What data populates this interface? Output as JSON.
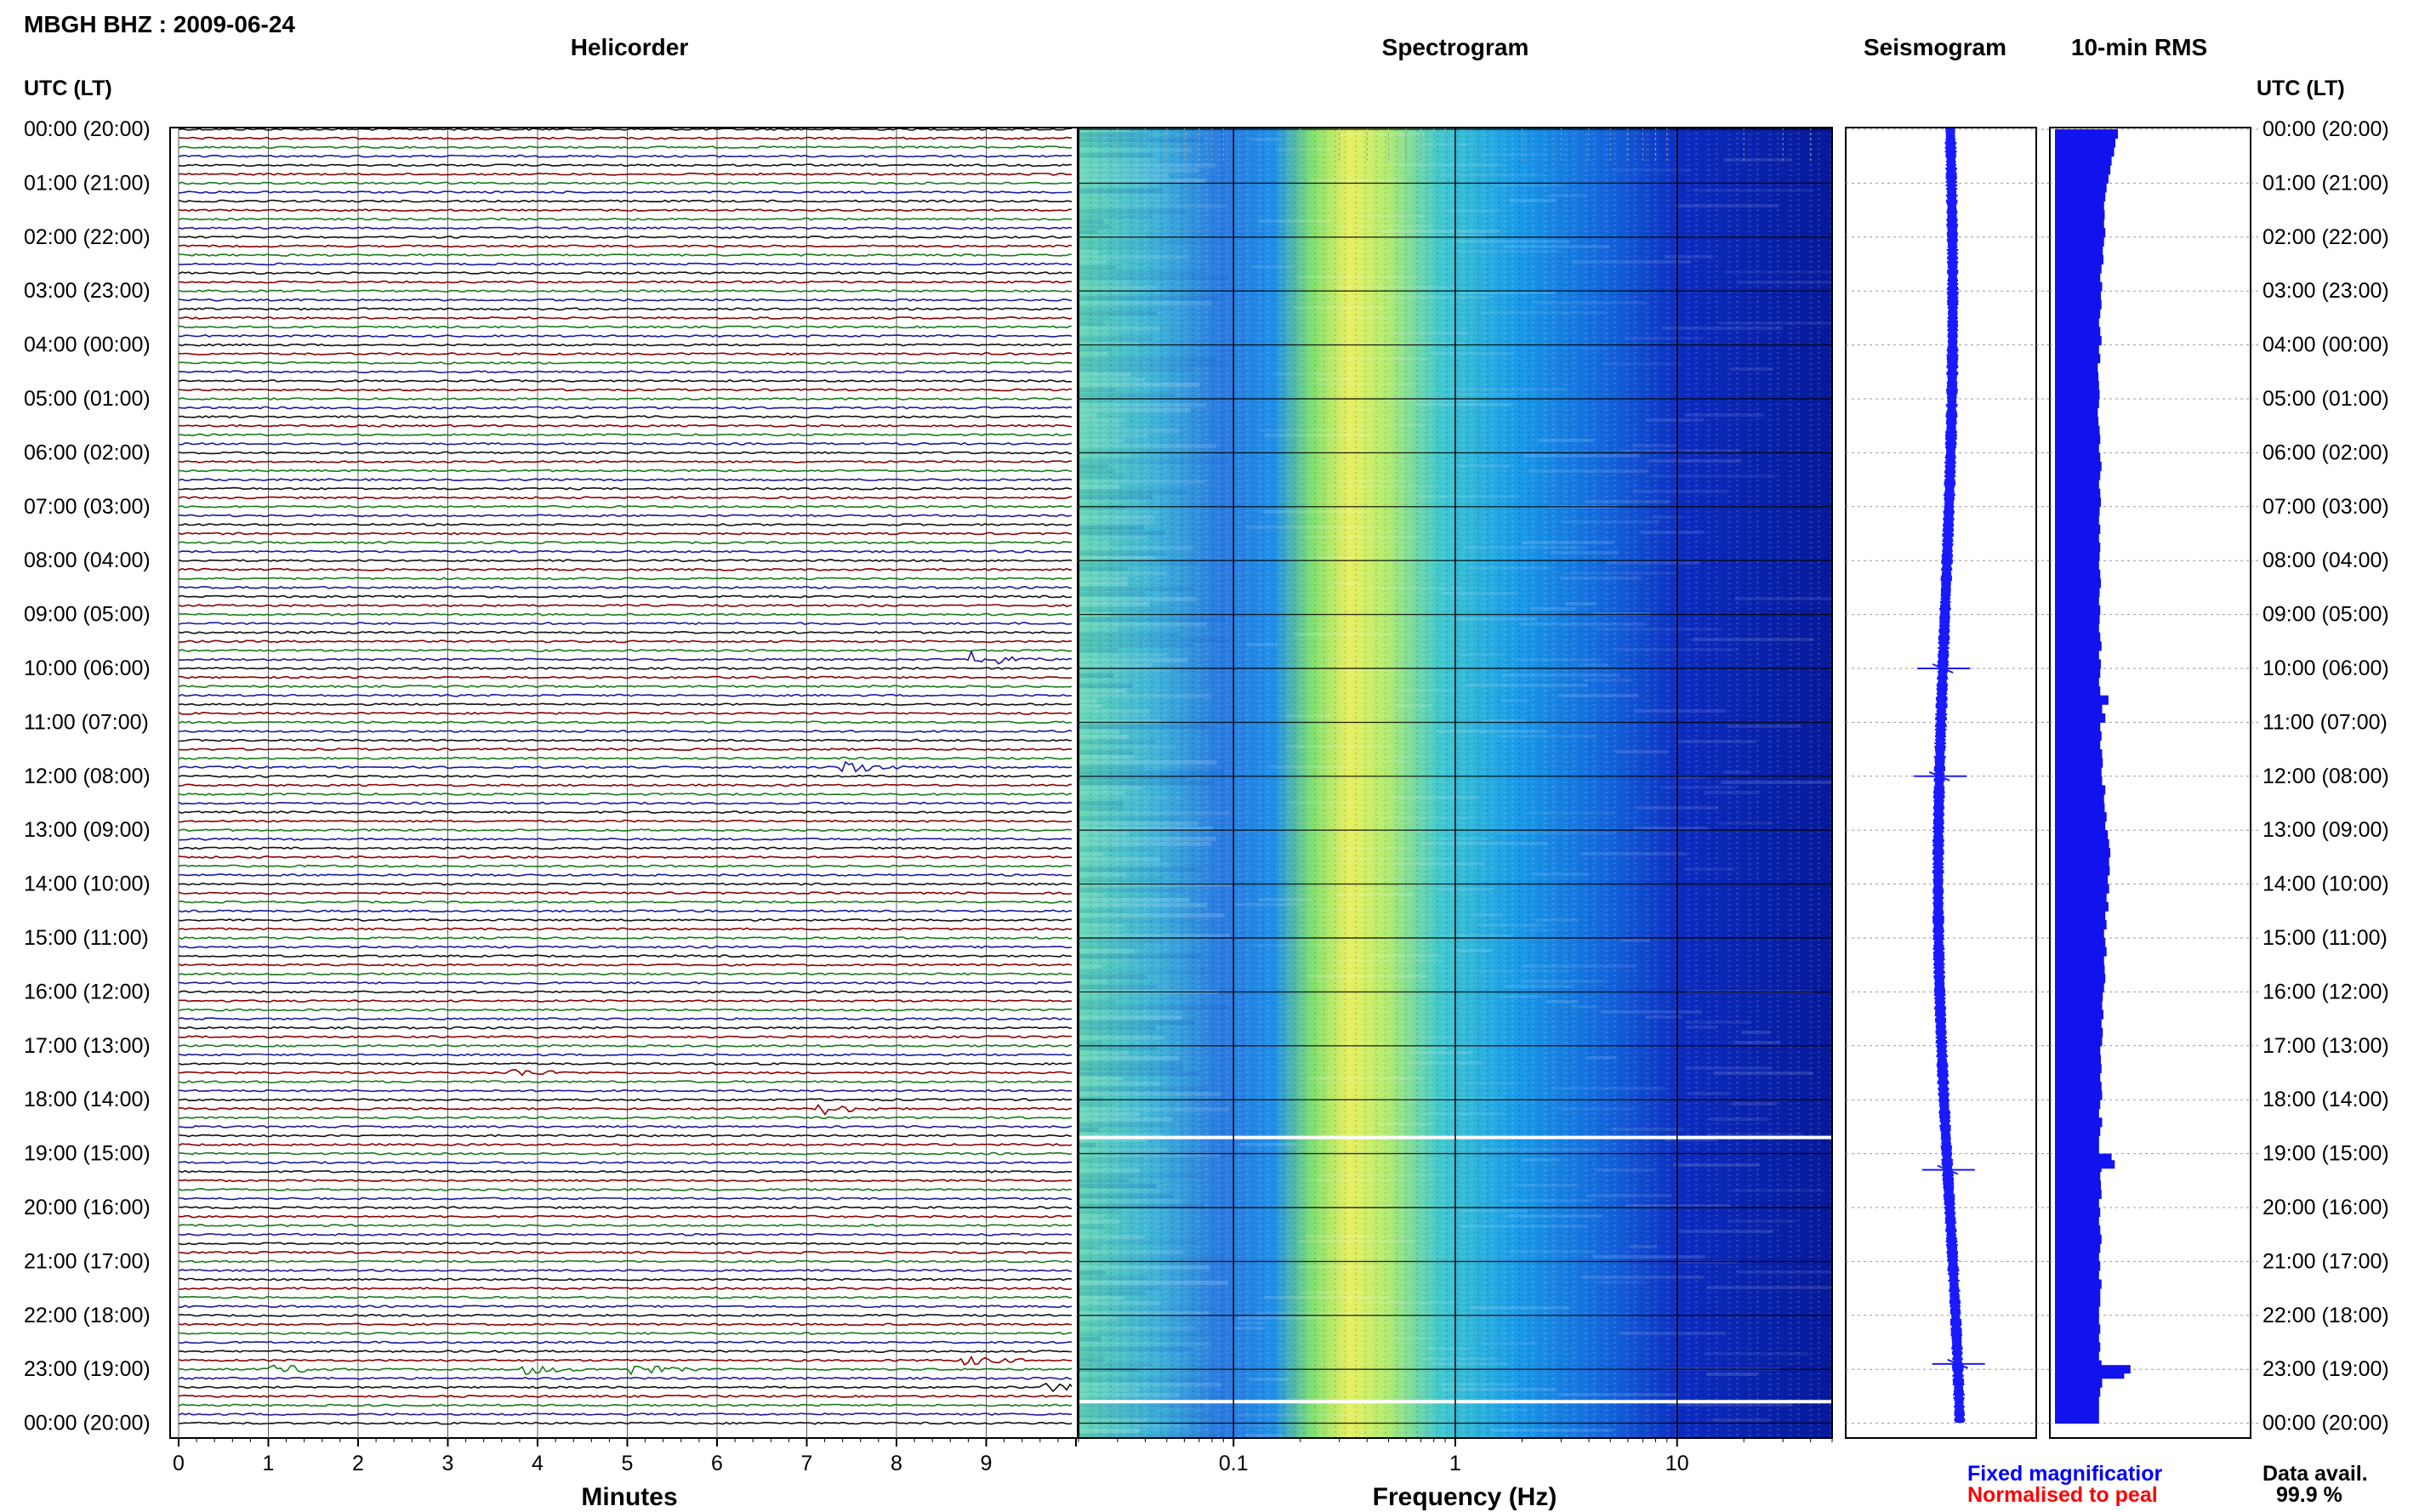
{
  "header": {
    "station_title": "MBGH BHZ : 2009-06-24",
    "panel_helicorder": "Helicorder",
    "panel_spectrogram": "Spectrogram",
    "panel_seismogram": "Seismogram",
    "panel_rms": "10-min RMS",
    "left_axis_title": "UTC (LT)",
    "right_axis_title": "UTC (LT)"
  },
  "footer": {
    "helicorder_xlabel": "Minutes",
    "spectrogram_xlabel": "Frequency (Hz)",
    "legend_fixed": "Fixed magnificatior",
    "legend_normalised": "Normalised to peal",
    "data_avail_label": "Data avail.",
    "data_avail_value": "99.9 %"
  },
  "colors": {
    "trace_black": "#111111",
    "trace_red": "#8b0000",
    "trace_green": "#1a7a1a",
    "trace_blue": "#1a1aa0",
    "seismogram_blue": "#1a1aff",
    "rms_blue": "#1212ee",
    "legend_blue": "#0000ff",
    "legend_red": "#ff0000"
  },
  "chart_data": [
    {
      "type": "line",
      "name": "helicorder",
      "xlabel": "Minutes",
      "x_ticks": [
        "0",
        "1",
        "2",
        "3",
        "4",
        "5",
        "6",
        "7",
        "8",
        "9"
      ],
      "xlim": [
        0,
        10
      ],
      "time_labels": [
        "00:00 (20:00)",
        "01:00 (21:00)",
        "02:00 (22:00)",
        "03:00 (23:00)",
        "04:00 (00:00)",
        "05:00 (01:00)",
        "06:00 (02:00)",
        "07:00 (03:00)",
        "08:00 (04:00)",
        "09:00 (05:00)",
        "10:00 (06:00)",
        "11:00 (07:00)",
        "12:00 (08:00)",
        "13:00 (09:00)",
        "14:00 (10:00)",
        "15:00 (11:00)",
        "16:00 (12:00)",
        "17:00 (13:00)",
        "18:00 (14:00)",
        "19:00 (15:00)",
        "20:00 (16:00)",
        "21:00 (17:00)",
        "22:00 (18:00)",
        "23:00 (19:00)",
        "00:00 (20:00)"
      ],
      "traces_per_hour": 6,
      "trace_color_cycle": [
        "black",
        "red",
        "green",
        "blue"
      ],
      "events": [
        {
          "hour": 9.8,
          "minute": 8.9,
          "strength": 2.2
        },
        {
          "hour": 11.8,
          "minute": 7.4,
          "strength": 2.5
        },
        {
          "hour": 17.5,
          "minute": 3.7,
          "strength": 1.2
        },
        {
          "hour": 18.2,
          "minute": 7.2,
          "strength": 1.5
        },
        {
          "hour": 22.8,
          "minute": 8.8,
          "strength": 1.3
        },
        {
          "hour": 23.0,
          "minute": 1.1,
          "strength": 1.4
        },
        {
          "hour": 23.0,
          "minute": 3.9,
          "strength": 1.3
        },
        {
          "hour": 23.0,
          "minute": 5.1,
          "strength": 1.4
        },
        {
          "hour": 23.3,
          "minute": 9.7,
          "strength": 1.2
        }
      ]
    },
    {
      "type": "heatmap",
      "name": "spectrogram",
      "xlabel": "Frequency (Hz)",
      "x_scale": "log",
      "xlim": [
        0.02,
        50
      ],
      "x_tick_labels": [
        "0.1",
        "1",
        "10"
      ],
      "gaps_hours": [
        18.7,
        23.6
      ]
    },
    {
      "type": "line",
      "name": "seismogram",
      "spikes_hours": [
        10.0,
        12.0,
        19.3,
        22.9
      ]
    },
    {
      "type": "bar",
      "name": "rms",
      "orientation": "horizontal",
      "values": [
        100,
        96,
        94,
        90,
        88,
        85,
        82,
        80,
        78,
        79,
        78,
        80,
        78,
        76,
        77,
        74,
        72,
        75,
        73,
        74,
        72,
        70,
        72,
        74,
        70,
        72,
        68,
        69,
        70,
        71,
        70,
        68,
        69,
        71,
        72,
        70,
        72,
        74,
        72,
        70,
        72,
        73,
        71,
        70,
        72,
        70,
        72,
        71,
        70,
        72,
        73,
        71,
        70,
        72,
        71,
        70,
        72,
        74,
        70,
        73,
        72,
        70,
        72,
        85,
        75,
        80,
        72,
        74,
        72,
        75,
        76,
        74,
        75,
        80,
        78,
        79,
        82,
        80,
        84,
        86,
        88,
        86,
        87,
        84,
        86,
        82,
        85,
        80,
        82,
        78,
        80,
        82,
        78,
        79,
        80,
        78,
        76,
        75,
        77,
        74,
        76,
        75,
        72,
        73,
        74,
        72,
        74,
        75,
        72,
        70,
        75,
        72,
        70,
        70,
        90,
        74,
        72,
        73,
        74,
        70,
        72,
        70,
        72,
        74,
        72,
        70,
        72,
        70,
        74,
        72,
        72,
        70,
        70,
        72,
        70,
        72,
        70,
        74,
        110,
        75,
        72,
        70,
        70,
        70
      ],
      "spikes": [
        {
          "hour": 23.0,
          "value": 120
        },
        {
          "hour": 19.2,
          "value": 95
        }
      ]
    }
  ]
}
